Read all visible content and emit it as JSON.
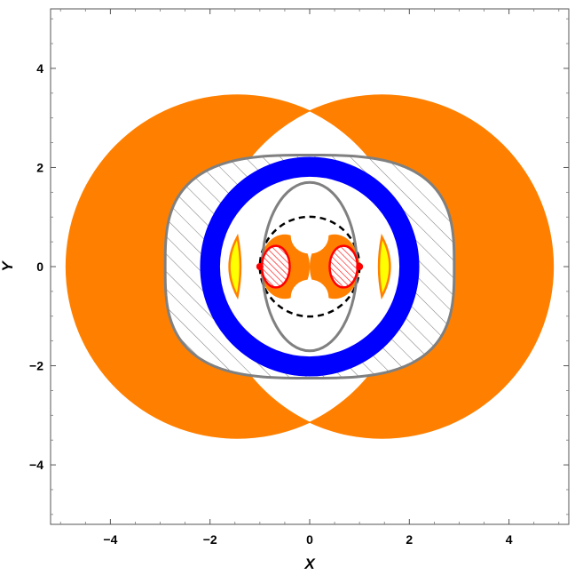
{
  "chart_data": {
    "type": "region-plot",
    "xlabel": "X",
    "ylabel": "Y",
    "xlim": [
      -5.2,
      5.2
    ],
    "ylim": [
      -5.2,
      5.2
    ],
    "xticks": [
      -4,
      -2,
      0,
      2,
      4
    ],
    "yticks": [
      -4,
      -2,
      0,
      2,
      4
    ],
    "xtick_labels": [
      "−4",
      "−2",
      "0",
      "2",
      "4"
    ],
    "ytick_labels": [
      "−4",
      "−2",
      "0",
      "2",
      "4"
    ],
    "grid": false,
    "colors": {
      "orange": "#ff8000",
      "blue": "#0000ff",
      "yellow": "#ffff00",
      "red": "#ff0000",
      "gray": "#808080",
      "dashed": "#000000"
    },
    "regions": {
      "orange_large_circles": {
        "centers": [
          [
            -1.45,
            0
          ],
          [
            1.45,
            0
          ]
        ],
        "radius": 3.45
      },
      "gray_outer_curve": {
        "x_extent": [
          -2.9,
          2.9
        ],
        "y_extent": [
          -2.25,
          2.25
        ]
      },
      "blue_ring": {
        "center": [
          0,
          0
        ],
        "r_inner": 1.8,
        "r_outer": 2.2
      },
      "gray_inner_ellipse": {
        "center": [
          0,
          0
        ],
        "rx": 0.95,
        "ry": 1.7
      },
      "dashed_circle": {
        "center": [
          0,
          0
        ],
        "radius": 1.0
      },
      "small_orange_lobes": {
        "centers": [
          [
            -0.5,
            0
          ],
          [
            0.5,
            0
          ]
        ],
        "rx": 0.5,
        "ry": 0.65
      },
      "red_hatched_ellipses": {
        "centers": [
          [
            -0.68,
            0
          ],
          [
            0.68,
            0
          ]
        ],
        "rx": 0.28,
        "ry": 0.42
      },
      "red_points": [
        [
          -1.0,
          0
        ],
        [
          1.0,
          0
        ]
      ],
      "yellow_crescents": {
        "x_positions": [
          -1.45,
          1.45
        ],
        "half_height": 0.6
      }
    }
  }
}
